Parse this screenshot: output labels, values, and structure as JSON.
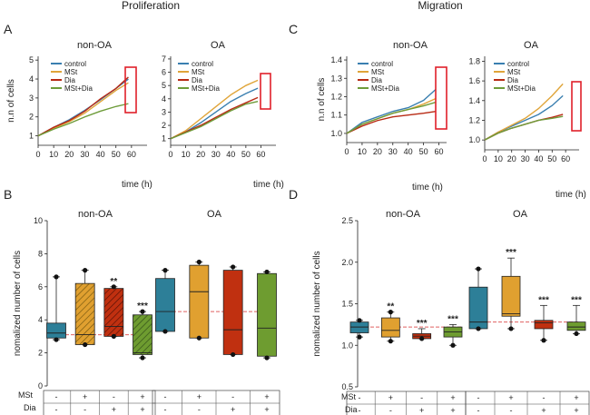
{
  "headers": {
    "left": "Proliferation",
    "right": "Migration"
  },
  "panel_letters": {
    "A": "A",
    "B": "B",
    "C": "C",
    "D": "D"
  },
  "row_labels": {
    "mst": "MSt",
    "dia": "Dia"
  },
  "colors": {
    "control": "#3a7fb0",
    "MSt": "#e0a53a",
    "Dia": "#b82a14",
    "MSt+Dia": "#6e9c3a",
    "box_control": "#2d7f98",
    "box_mst": "#e0a030",
    "box_dia": "#c03010",
    "box_mstdia": "#6e9c30",
    "highlight": "#e0202a",
    "median_line": "#e06060"
  },
  "chart_data": [
    {
      "id": "A1",
      "type": "line",
      "title": "non-OA",
      "ylabel": "n.n of cells",
      "xlabel": "time (h)",
      "xlim": [
        0,
        70
      ],
      "ylim": [
        0.5,
        5.2
      ],
      "xticks": [
        0,
        10,
        20,
        30,
        40,
        50,
        60
      ],
      "yticks": [
        1,
        2,
        3,
        4,
        5
      ],
      "x": [
        0,
        10,
        20,
        30,
        40,
        50,
        58
      ],
      "series": [
        {
          "name": "control",
          "values": [
            1.0,
            1.45,
            1.85,
            2.35,
            2.9,
            3.5,
            4.0
          ]
        },
        {
          "name": "MSt",
          "values": [
            1.0,
            1.4,
            1.75,
            2.2,
            2.8,
            3.4,
            3.8
          ]
        },
        {
          "name": "Dia",
          "values": [
            1.0,
            1.45,
            1.8,
            2.3,
            2.95,
            3.5,
            4.1
          ]
        },
        {
          "name": "MSt+Dia",
          "values": [
            1.0,
            1.35,
            1.65,
            2.0,
            2.3,
            2.55,
            2.7
          ]
        }
      ]
    },
    {
      "id": "A2",
      "type": "line",
      "title": "OA",
      "ylabel": "",
      "xlabel": "time (h)",
      "xlim": [
        0,
        70
      ],
      "ylim": [
        0.5,
        7.2
      ],
      "xticks": [
        0,
        10,
        20,
        30,
        40,
        50,
        60
      ],
      "yticks": [
        1,
        2,
        3,
        4,
        5,
        6,
        7
      ],
      "x": [
        0,
        10,
        20,
        30,
        40,
        50,
        58
      ],
      "series": [
        {
          "name": "control",
          "values": [
            1.0,
            1.5,
            2.2,
            3.0,
            3.8,
            4.4,
            4.8
          ]
        },
        {
          "name": "MSt",
          "values": [
            1.0,
            1.6,
            2.5,
            3.4,
            4.3,
            5.0,
            5.4
          ]
        },
        {
          "name": "Dia",
          "values": [
            1.0,
            1.5,
            2.0,
            2.6,
            3.2,
            3.7,
            4.1
          ]
        },
        {
          "name": "MSt+Dia",
          "values": [
            1.0,
            1.45,
            1.9,
            2.5,
            3.1,
            3.6,
            3.8
          ]
        }
      ]
    },
    {
      "id": "C1",
      "type": "line",
      "title": "non-OA",
      "ylabel": "n.n of cells",
      "xlabel": "time (h)",
      "xlim": [
        0,
        65
      ],
      "ylim": [
        0.95,
        1.42
      ],
      "xticks": [
        0,
        10,
        20,
        30,
        40,
        50,
        60
      ],
      "yticks": [
        "1.0",
        "1.1",
        "1.2",
        "1.3",
        "1.4"
      ],
      "x": [
        0,
        10,
        20,
        30,
        40,
        50,
        58
      ],
      "series": [
        {
          "name": "control",
          "values": [
            1.0,
            1.06,
            1.09,
            1.12,
            1.14,
            1.18,
            1.24
          ]
        },
        {
          "name": "MSt",
          "values": [
            1.0,
            1.05,
            1.08,
            1.11,
            1.13,
            1.16,
            1.19
          ]
        },
        {
          "name": "Dia",
          "values": [
            1.0,
            1.04,
            1.07,
            1.09,
            1.1,
            1.11,
            1.12
          ]
        },
        {
          "name": "MSt+Dia",
          "values": [
            1.0,
            1.05,
            1.08,
            1.11,
            1.13,
            1.15,
            1.17
          ]
        }
      ]
    },
    {
      "id": "C2",
      "type": "line",
      "title": "OA",
      "ylabel": "",
      "xlabel": "time (h)",
      "xlim": [
        0,
        70
      ],
      "ylim": [
        0.9,
        1.85
      ],
      "xticks": [
        0,
        10,
        20,
        30,
        40,
        50,
        60
      ],
      "yticks": [
        "1.0",
        "1.2",
        "1.4",
        "1.6",
        "1.8"
      ],
      "x": [
        0,
        10,
        20,
        30,
        40,
        50,
        58
      ],
      "series": [
        {
          "name": "control",
          "values": [
            1.0,
            1.08,
            1.14,
            1.2,
            1.26,
            1.35,
            1.45
          ]
        },
        {
          "name": "MSt",
          "values": [
            1.0,
            1.08,
            1.15,
            1.22,
            1.32,
            1.45,
            1.57
          ]
        },
        {
          "name": "Dia",
          "values": [
            1.0,
            1.07,
            1.12,
            1.16,
            1.2,
            1.23,
            1.26
          ]
        },
        {
          "name": "MSt+Dia",
          "values": [
            1.0,
            1.07,
            1.12,
            1.16,
            1.2,
            1.22,
            1.24
          ]
        }
      ]
    },
    {
      "id": "B",
      "type": "box",
      "groups": [
        "non-OA",
        "OA"
      ],
      "ylabel": "nomalized number of cells",
      "ylim": [
        0,
        10
      ],
      "yticks": [
        0,
        2,
        4,
        6,
        8,
        10
      ],
      "reference_lines": [
        3.1,
        4.5
      ],
      "boxes": [
        {
          "group": "non-OA",
          "name": "control",
          "min": 2.8,
          "q1": 2.9,
          "median": 3.2,
          "q3": 3.8,
          "max": 6.6,
          "points": [
            2.8,
            6.6
          ],
          "sig": ""
        },
        {
          "group": "non-OA",
          "name": "MSt",
          "min": 2.5,
          "q1": 2.5,
          "median": 3.1,
          "q3": 6.2,
          "max": 7.0,
          "points": [
            2.5,
            7.0
          ],
          "sig": ""
        },
        {
          "group": "non-OA",
          "name": "Dia",
          "min": 3.0,
          "q1": 3.0,
          "median": 3.6,
          "q3": 5.9,
          "max": 6.0,
          "points": [
            3.0,
            6.0
          ],
          "sig": "**"
        },
        {
          "group": "non-OA",
          "name": "MSt+Dia",
          "min": 1.7,
          "q1": 1.9,
          "median": 2.0,
          "q3": 4.3,
          "max": 4.5,
          "points": [
            1.7,
            4.5
          ],
          "sig": "***"
        },
        {
          "group": "OA",
          "name": "control",
          "min": 3.3,
          "q1": 3.3,
          "median": 4.5,
          "q3": 6.5,
          "max": 7.0,
          "points": [
            3.3,
            7.0
          ],
          "sig": ""
        },
        {
          "group": "OA",
          "name": "MSt",
          "min": 2.9,
          "q1": 2.9,
          "median": 5.7,
          "q3": 7.3,
          "max": 7.5,
          "points": [
            2.9,
            7.5
          ],
          "sig": ""
        },
        {
          "group": "OA",
          "name": "Dia",
          "min": 1.9,
          "q1": 1.9,
          "median": 3.4,
          "q3": 7.0,
          "max": 7.2,
          "points": [
            1.9,
            7.2
          ],
          "sig": ""
        },
        {
          "group": "OA",
          "name": "MSt+Dia",
          "min": 1.7,
          "q1": 1.8,
          "median": 3.5,
          "q3": 6.8,
          "max": 6.9,
          "points": [
            1.7,
            6.9
          ],
          "sig": ""
        }
      ],
      "design": {
        "MSt": [
          "-",
          "+",
          "-",
          "+",
          "-",
          "+",
          "-",
          "+"
        ],
        "Dia": [
          "-",
          "-",
          "+",
          "+",
          "-",
          "-",
          "+",
          "+"
        ]
      }
    },
    {
      "id": "D",
      "type": "box",
      "groups": [
        "non-OA",
        "OA"
      ],
      "ylabel": "nomalized number of cells",
      "ylim": [
        0.5,
        2.5
      ],
      "yticks": [
        "0.5",
        "1.0",
        "1.5",
        "2.0",
        "2.5"
      ],
      "reference_lines": [
        1.22,
        1.28
      ],
      "boxes": [
        {
          "group": "non-OA",
          "name": "control",
          "min": 1.1,
          "q1": 1.15,
          "median": 1.22,
          "q3": 1.28,
          "max": 1.3,
          "points": [
            1.1,
            1.3
          ],
          "sig": ""
        },
        {
          "group": "non-OA",
          "name": "MSt",
          "min": 1.05,
          "q1": 1.1,
          "median": 1.18,
          "q3": 1.33,
          "max": 1.4,
          "points": [
            1.05,
            1.4
          ],
          "sig": "**"
        },
        {
          "group": "non-OA",
          "name": "Dia",
          "min": 1.08,
          "q1": 1.08,
          "median": 1.11,
          "q3": 1.14,
          "max": 1.2,
          "points": [
            1.08
          ],
          "sig": "***"
        },
        {
          "group": "non-OA",
          "name": "MSt+Dia",
          "min": 1.0,
          "q1": 1.1,
          "median": 1.16,
          "q3": 1.22,
          "max": 1.25,
          "points": [
            1.0
          ],
          "sig": "***"
        },
        {
          "group": "OA",
          "name": "control",
          "min": 1.2,
          "q1": 1.2,
          "median": 1.28,
          "q3": 1.7,
          "max": 1.92,
          "points": [
            1.2,
            1.92
          ],
          "sig": ""
        },
        {
          "group": "OA",
          "name": "MSt",
          "min": 1.2,
          "q1": 1.35,
          "median": 1.38,
          "q3": 1.83,
          "max": 2.05,
          "points": [
            1.2
          ],
          "sig": "***"
        },
        {
          "group": "OA",
          "name": "Dia",
          "min": 1.06,
          "q1": 1.2,
          "median": 1.27,
          "q3": 1.3,
          "max": 1.48,
          "points": [
            1.06
          ],
          "sig": "***"
        },
        {
          "group": "OA",
          "name": "MSt+Dia",
          "min": 1.14,
          "q1": 1.18,
          "median": 1.22,
          "q3": 1.28,
          "max": 1.48,
          "points": [
            1.14
          ],
          "sig": "***"
        }
      ],
      "design": {
        "MSt": [
          "-",
          "+",
          "-",
          "+",
          "-",
          "+",
          "-",
          "+"
        ],
        "Dia": [
          "-",
          "-",
          "+",
          "+",
          "-",
          "-",
          "+",
          "+"
        ]
      }
    }
  ]
}
